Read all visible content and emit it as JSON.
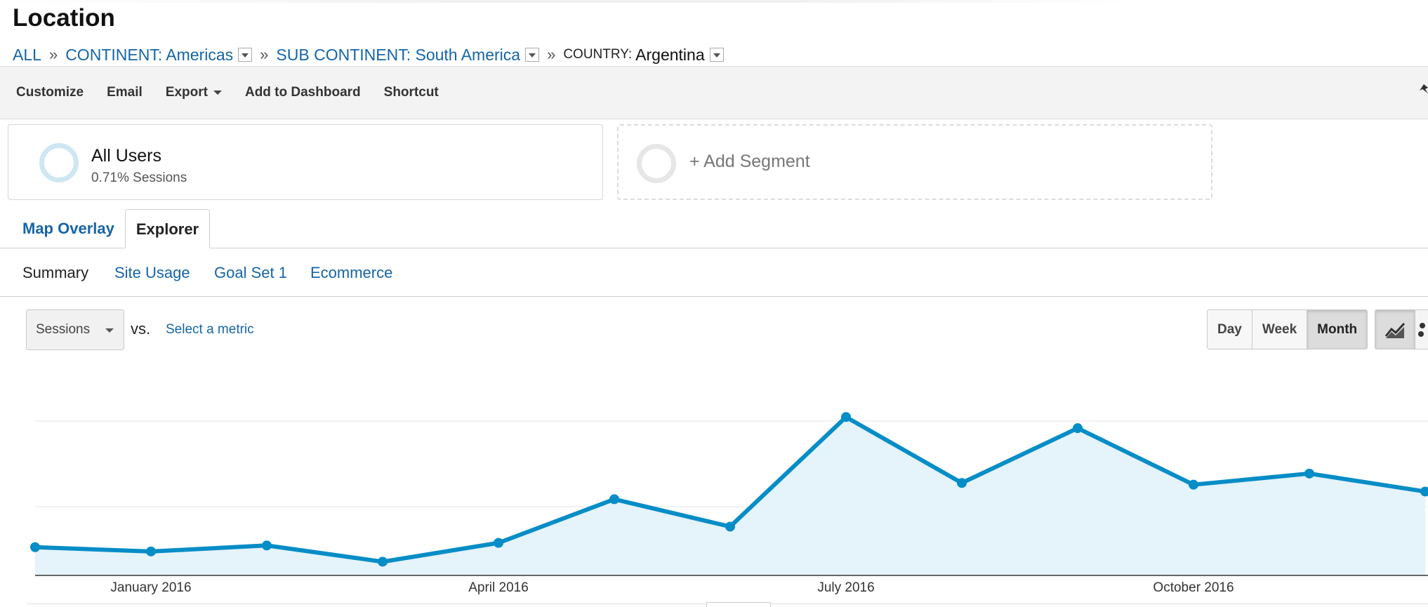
{
  "page": {
    "title": "Location"
  },
  "breadcrumb": {
    "all": "ALL",
    "sep": "»",
    "continent": "CONTINENT: Americas",
    "subcontinent": "SUB CONTINENT: South America",
    "country_key": "COUNTRY:",
    "country_value": "Argentina"
  },
  "toolbar": {
    "customize": "Customize",
    "email": "Email",
    "export": "Export",
    "add_to_dashboard": "Add to Dashboard",
    "shortcut": "Shortcut"
  },
  "segments": {
    "active": {
      "name": "All Users",
      "detail": "0.71% Sessions"
    },
    "add_label": "+ Add Segment"
  },
  "view_tabs": {
    "map_overlay": "Map Overlay",
    "explorer": "Explorer"
  },
  "explorer_tabs": {
    "summary": "Summary",
    "site_usage": "Site Usage",
    "goal_set_1": "Goal Set 1",
    "ecommerce": "Ecommerce"
  },
  "metric": {
    "selected": "Sessions",
    "vs": "vs.",
    "compare_link": "Select a metric"
  },
  "period": {
    "day": "Day",
    "week": "Week",
    "month": "Month",
    "active": "Month"
  },
  "icons": {
    "chart_type_line": "line-chart-icon",
    "chart_type_motion": "motion-chart-icon",
    "caret": "chevron-down-icon"
  },
  "colors": {
    "link": "#1565a8",
    "series": "#058dc7",
    "area_fill": "#e5f3fa"
  },
  "chart_data": {
    "type": "area",
    "series": [
      {
        "values": [
          0.33,
          0.28,
          0.35,
          0.16,
          0.38,
          0.89,
          0.57,
          1.85,
          1.08,
          1.72,
          1.06,
          1.19,
          0.98
        ]
      }
    ],
    "x_ticks": [
      "January 2016",
      "April 2016",
      "July 2016",
      "October 2016"
    ],
    "x_tick_index": [
      1,
      4,
      7,
      10
    ],
    "ylim": [
      0,
      2
    ],
    "grid": true,
    "legend": "none"
  }
}
